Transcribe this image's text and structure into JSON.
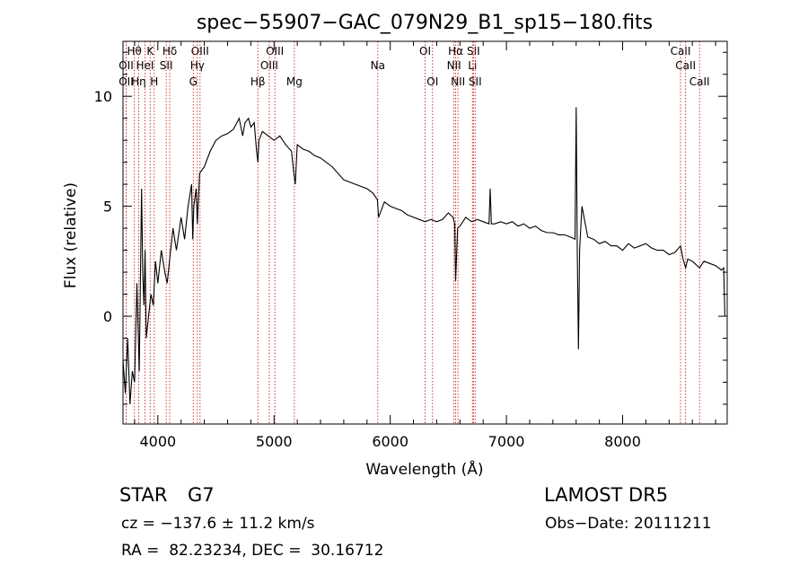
{
  "chart_data": {
    "type": "line",
    "title": "spec−55907−GAC_079N29_B1_sp15−180.fits",
    "xlabel": "Wavelength (Å)",
    "ylabel": "Flux (relative)",
    "xlim": [
      3700,
      8900
    ],
    "ylim": [
      -4.9,
      12.5
    ],
    "xticks": [
      4000,
      5000,
      6000,
      7000,
      8000
    ],
    "yticks": [
      0,
      5,
      10
    ],
    "grid": false,
    "series": [
      {
        "x": [
          3700,
          3720,
          3740,
          3760,
          3780,
          3800,
          3820,
          3840,
          3860,
          3870,
          3880,
          3890,
          3900,
          3920,
          3940,
          3960,
          3980,
          4000,
          4030,
          4060,
          4080,
          4100,
          4130,
          4160,
          4200,
          4230,
          4260,
          4290,
          4300,
          4310,
          4330,
          4340,
          4360,
          4400,
          4450,
          4500,
          4550,
          4600,
          4650,
          4700,
          4730,
          4750,
          4780,
          4800,
          4830,
          4850,
          4861,
          4870,
          4900,
          4950,
          5000,
          5050,
          5100,
          5150,
          5170,
          5183,
          5200,
          5250,
          5300,
          5350,
          5400,
          5450,
          5500,
          5600,
          5700,
          5800,
          5850,
          5890,
          5900,
          5950,
          6000,
          6050,
          6100,
          6150,
          6200,
          6250,
          6300,
          6350,
          6400,
          6450,
          6500,
          6540,
          6555,
          6563,
          6580,
          6600,
          6650,
          6700,
          6750,
          6800,
          6850,
          6860,
          6870,
          6900,
          6950,
          7000,
          7050,
          7100,
          7150,
          7200,
          7250,
          7300,
          7350,
          7400,
          7450,
          7500,
          7550,
          7590,
          7600,
          7610,
          7620,
          7630,
          7640,
          7650,
          7700,
          7750,
          7800,
          7850,
          7900,
          7950,
          8000,
          8050,
          8100,
          8150,
          8200,
          8250,
          8300,
          8350,
          8400,
          8450,
          8498,
          8520,
          8542,
          8560,
          8600,
          8662,
          8700,
          8750,
          8800,
          8850,
          8870,
          8880
        ],
        "y": [
          -2.0,
          -3.5,
          -1.0,
          -4.0,
          -2.5,
          -3.0,
          1.5,
          -2.5,
          5.8,
          2.0,
          0.5,
          3.0,
          -1.0,
          0.0,
          1.0,
          0.5,
          2.5,
          1.5,
          3.0,
          2.0,
          1.5,
          2.5,
          4.0,
          3.0,
          4.5,
          3.5,
          5.0,
          6.0,
          3.5,
          5.0,
          5.8,
          4.2,
          6.5,
          6.8,
          7.5,
          8.0,
          8.2,
          8.3,
          8.5,
          9.0,
          8.2,
          8.8,
          9.0,
          8.6,
          8.8,
          7.5,
          7.0,
          8.0,
          8.4,
          8.2,
          8.0,
          8.2,
          7.8,
          7.5,
          6.5,
          6.0,
          7.8,
          7.6,
          7.5,
          7.3,
          7.2,
          7.0,
          6.8,
          6.2,
          6.0,
          5.8,
          5.6,
          5.3,
          4.5,
          5.2,
          5.0,
          4.9,
          4.8,
          4.6,
          4.5,
          4.4,
          4.3,
          4.4,
          4.3,
          4.4,
          4.7,
          4.5,
          4.2,
          1.6,
          4.0,
          4.1,
          4.5,
          4.3,
          4.4,
          4.3,
          4.2,
          5.8,
          4.2,
          4.2,
          4.3,
          4.2,
          4.3,
          4.1,
          4.2,
          4.0,
          4.1,
          3.9,
          3.8,
          3.8,
          3.7,
          3.7,
          3.6,
          3.5,
          9.5,
          3.0,
          -1.5,
          3.0,
          4.0,
          5.0,
          3.6,
          3.5,
          3.3,
          3.4,
          3.2,
          3.2,
          3.0,
          3.3,
          3.1,
          3.2,
          3.3,
          3.1,
          3.0,
          3.0,
          2.8,
          2.9,
          3.2,
          2.6,
          2.2,
          2.6,
          2.5,
          2.2,
          2.5,
          2.4,
          2.3,
          2.1,
          2.2,
          0.0
        ]
      }
    ],
    "line_markers": [
      {
        "label": "Hθ",
        "w": 3798,
        "row": 0
      },
      {
        "label": "OII",
        "w": 3727,
        "row": 1
      },
      {
        "label": "OII",
        "w": 3727,
        "row": 2
      },
      {
        "label": "K",
        "w": 3934,
        "row": 0
      },
      {
        "label": "HeI",
        "w": 3889,
        "row": 1
      },
      {
        "label": "Hη",
        "w": 3835,
        "row": 2
      },
      {
        "label": "Hδ",
        "w": 4102,
        "row": 0
      },
      {
        "label": "SII",
        "w": 4072,
        "row": 1
      },
      {
        "label": "H",
        "w": 3969,
        "row": 2
      },
      {
        "label": "OIII",
        "w": 4363,
        "row": 0
      },
      {
        "label": "Hγ",
        "w": 4340,
        "row": 1
      },
      {
        "label": "G",
        "w": 4305,
        "row": 2
      },
      {
        "label": "OIII",
        "w": 5007,
        "row": 0
      },
      {
        "label": "OIII",
        "w": 4959,
        "row": 1
      },
      {
        "label": "Hβ",
        "w": 4861,
        "row": 2
      },
      {
        "label": "Mg",
        "w": 5175,
        "row": 2
      },
      {
        "label": "Na",
        "w": 5893,
        "row": 1
      },
      {
        "label": "OI",
        "w": 6300,
        "row": 0
      },
      {
        "label": "OI",
        "w": 6364,
        "row": 2
      },
      {
        "label": "Hα",
        "w": 6563,
        "row": 0
      },
      {
        "label": "NII",
        "w": 6548,
        "row": 1
      },
      {
        "label": "NII",
        "w": 6583,
        "row": 2
      },
      {
        "label": "SII",
        "w": 6716,
        "row": 0
      },
      {
        "label": "Li",
        "w": 6708,
        "row": 1
      },
      {
        "label": "SII",
        "w": 6731,
        "row": 2
      },
      {
        "label": "CaII",
        "w": 8498,
        "row": 0
      },
      {
        "label": "CaII",
        "w": 8542,
        "row": 1
      },
      {
        "label": "CaII",
        "w": 8662,
        "row": 2
      }
    ],
    "colors": {
      "spectrum": "#000000",
      "markers": "#cc2222",
      "axes": "#000000"
    }
  },
  "info": {
    "class": "STAR",
    "subclass": "G7",
    "survey": "LAMOST DR5",
    "cz": "cz = −137.6 ± 11.2 km/s",
    "obs_date": "Obs−Date: 20111211",
    "radec": "RA =  82.23234, DEC =  30.16712"
  }
}
